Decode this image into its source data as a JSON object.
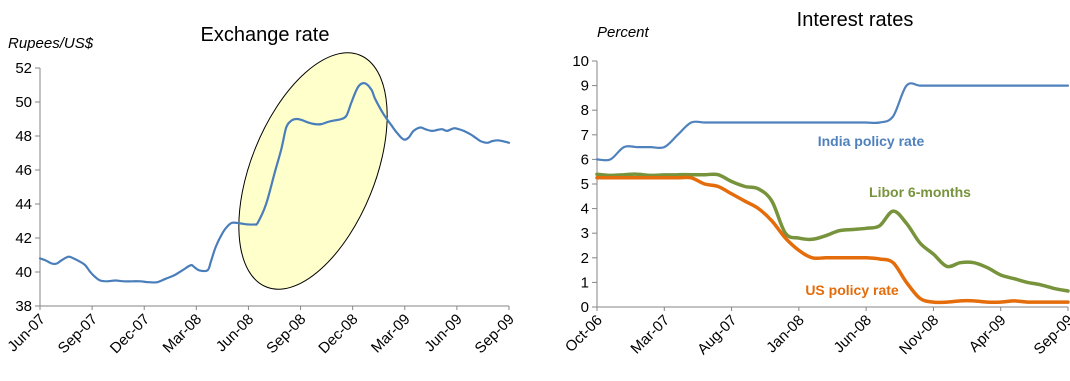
{
  "chart_data": [
    {
      "type": "line",
      "title": "Exchange rate",
      "ylabel": "Rupees/US$",
      "xlabel": "",
      "ylim": [
        38,
        52
      ],
      "yticks": [
        38,
        40,
        42,
        44,
        46,
        48,
        50,
        52
      ],
      "x_tick_labels": [
        "Jun-07",
        "Sep-07",
        "Dec-07",
        "Mar-08",
        "Jun-08",
        "Sep-08",
        "Dec-08",
        "Mar-09",
        "Jun-09",
        "Sep-09"
      ],
      "x_range": [
        0,
        28
      ],
      "grid": false,
      "highlight": "ellipse around Jun-08 to Mar-09",
      "colors": {
        "series": "#4A7EBB",
        "highlight_fill": "#FFFFCC",
        "axis": "#868686"
      },
      "series": [
        {
          "x": [
            0,
            0.3,
            0.7,
            1,
            1.3,
            1.7,
            2,
            2.4,
            2.7,
            3,
            3.3,
            3.6,
            4,
            4.5,
            5,
            5.5,
            6,
            6.5,
            7,
            7.5,
            8,
            8.5,
            9,
            9.2,
            9.5,
            10,
            10.2,
            10.5,
            10.9,
            11.2,
            11.5,
            12,
            12.4,
            12.8,
            13,
            13.5,
            14,
            14.4,
            14.7,
            15,
            15.3,
            15.6,
            16,
            16.4,
            16.8,
            17.1,
            17.5,
            18,
            18.3,
            18.6,
            19,
            19.4,
            19.8,
            20,
            20.5,
            21,
            21.3,
            21.7,
            22,
            22.3,
            22.7,
            23,
            23.4,
            23.7,
            24,
            24.3,
            24.7,
            25,
            25.3,
            25.7,
            26,
            26.3,
            26.7,
            27,
            27.3,
            27.6,
            28
          ],
          "values": [
            40.8,
            40.7,
            40.5,
            40.5,
            40.7,
            40.9,
            40.8,
            40.6,
            40.4,
            40,
            39.7,
            39.5,
            39.45,
            39.5,
            39.45,
            39.45,
            39.45,
            39.4,
            39.4,
            39.6,
            39.8,
            40.1,
            40.4,
            40.3,
            40.1,
            40.1,
            40.6,
            41.5,
            42.3,
            42.7,
            42.9,
            42.85,
            42.8,
            42.8,
            42.9,
            44,
            45.8,
            47.2,
            48.5,
            48.9,
            49,
            48.95,
            48.8,
            48.7,
            48.7,
            48.8,
            48.9,
            49,
            49.2,
            50,
            50.9,
            51.1,
            50.7,
            50.2,
            49.3,
            48.6,
            48.2,
            47.8,
            47.9,
            48.3,
            48.5,
            48.4,
            48.3,
            48.35,
            48.4,
            48.3,
            48.45,
            48.4,
            48.3,
            48.1,
            47.9,
            47.7,
            47.6,
            47.7,
            47.75,
            47.7,
            47.6
          ]
        }
      ]
    },
    {
      "type": "line",
      "title": "Interest rates",
      "ylabel": "Percent",
      "xlabel": "",
      "ylim": [
        0,
        10
      ],
      "yticks": [
        0,
        1,
        2,
        3,
        4,
        5,
        6,
        7,
        8,
        9,
        10
      ],
      "x_tick_labels": [
        "Oct-06",
        "Mar-07",
        "Aug-07",
        "Jan-08",
        "Jun-08",
        "Nov-08",
        "Apr-09",
        "Sep-09"
      ],
      "x_range": [
        0,
        35
      ],
      "grid": false,
      "colors": {
        "axis": "#868686"
      },
      "series": [
        {
          "name": "India policy rate",
          "color": "#4F81BD",
          "x": [
            0,
            1,
            2,
            3,
            4,
            5,
            6,
            7,
            8,
            9,
            10,
            11,
            12,
            13,
            14,
            15,
            16,
            17,
            18,
            19,
            20,
            21,
            22,
            23,
            24,
            25,
            26,
            27,
            28,
            29,
            30,
            31,
            32,
            33,
            34,
            35
          ],
          "values": [
            6,
            6,
            6.5,
            6.5,
            6.5,
            6.5,
            7,
            7.5,
            7.5,
            7.5,
            7.5,
            7.5,
            7.5,
            7.5,
            7.5,
            7.5,
            7.5,
            7.5,
            7.5,
            7.5,
            7.5,
            7.5,
            7.75,
            9,
            9,
            9,
            9,
            9,
            9,
            9,
            9,
            9,
            9,
            9,
            9,
            9
          ]
        },
        {
          "name": "Libor 6-months",
          "color": "#77933C",
          "x": [
            0,
            1,
            2,
            3,
            4,
            5,
            6,
            7,
            8,
            9,
            10,
            11,
            12,
            13,
            14,
            15,
            16,
            17,
            18,
            19,
            20,
            21,
            22,
            23,
            24,
            25,
            26,
            27,
            28,
            29,
            30,
            31,
            32,
            33,
            34,
            35
          ],
          "values": [
            5.4,
            5.35,
            5.38,
            5.4,
            5.35,
            5.37,
            5.38,
            5.38,
            5.38,
            5.38,
            5.1,
            4.9,
            4.8,
            4.3,
            3,
            2.8,
            2.75,
            2.9,
            3.1,
            3.15,
            3.2,
            3.3,
            3.9,
            3.4,
            2.6,
            2.15,
            1.65,
            1.8,
            1.8,
            1.6,
            1.3,
            1.15,
            1.0,
            0.9,
            0.75,
            0.65
          ]
        },
        {
          "name": "US policy rate",
          "color": "#E46C0A",
          "x": [
            0,
            1,
            2,
            3,
            4,
            5,
            6,
            7,
            8,
            9,
            10,
            11,
            12,
            13,
            14,
            15,
            16,
            17,
            18,
            19,
            20,
            21,
            22,
            23,
            24,
            25,
            26,
            27,
            28,
            29,
            30,
            31,
            32,
            33,
            34,
            35
          ],
          "values": [
            5.25,
            5.25,
            5.25,
            5.25,
            5.25,
            5.25,
            5.25,
            5.25,
            5.0,
            4.9,
            4.6,
            4.3,
            4.0,
            3.5,
            2.8,
            2.3,
            2.0,
            2.0,
            2.0,
            2.0,
            2.0,
            1.95,
            1.8,
            1.0,
            0.35,
            0.2,
            0.2,
            0.25,
            0.25,
            0.2,
            0.2,
            0.25,
            0.2,
            0.2,
            0.2,
            0.2
          ]
        }
      ]
    }
  ]
}
